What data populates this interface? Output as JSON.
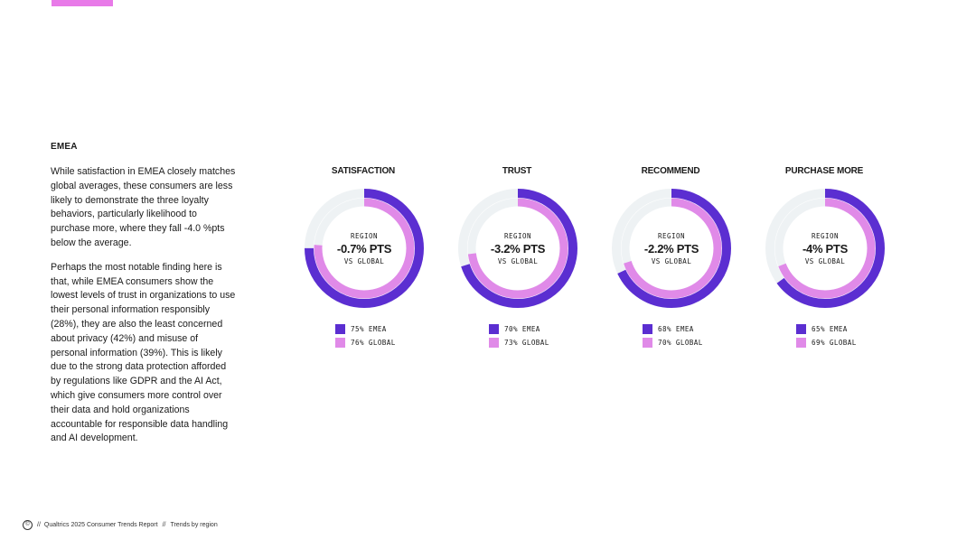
{
  "colors": {
    "emea": "#5b2ed1",
    "global": "#e08ae8",
    "track": "#eef2f4",
    "accent_bar": "#e87ae8"
  },
  "section": {
    "heading": "EMEA",
    "paragraphs": [
      "While satisfaction in EMEA closely matches global averages, these consumers are less likely to demonstrate the three loyalty behaviors, particularly likelihood to purchase more, where they fall -4.0 %pts below the average.",
      "Perhaps the most notable finding here is that, while EMEA consumers show the lowest levels of trust in organizations to use their personal information responsibly (28%), they are also the least concerned about privacy (42%) and misuse of personal information (39%). This is likely due to the strong data protection afforded by regulations like GDPR and the AI Act, which give consumers more control over their data and hold organizations accountable for responsible data handling and AI development."
    ]
  },
  "chart_data": [
    {
      "type": "pie",
      "title": "SATISFACTION",
      "center_top": "REGION",
      "center_value": "-0.7% PTS",
      "center_bottom": "VS GLOBAL",
      "series": [
        {
          "name": "EMEA",
          "value": 75,
          "label": "75% EMEA"
        },
        {
          "name": "GLOBAL",
          "value": 76,
          "label": "76% GLOBAL"
        }
      ]
    },
    {
      "type": "pie",
      "title": "TRUST",
      "center_top": "REGION",
      "center_value": "-3.2% PTS",
      "center_bottom": "VS GLOBAL",
      "series": [
        {
          "name": "EMEA",
          "value": 70,
          "label": "70% EMEA"
        },
        {
          "name": "GLOBAL",
          "value": 73,
          "label": "73% GLOBAL"
        }
      ]
    },
    {
      "type": "pie",
      "title": "RECOMMEND",
      "center_top": "REGION",
      "center_value": "-2.2% PTS",
      "center_bottom": "VS GLOBAL",
      "series": [
        {
          "name": "EMEA",
          "value": 68,
          "label": "68% EMEA"
        },
        {
          "name": "GLOBAL",
          "value": 70,
          "label": "70% GLOBAL"
        }
      ]
    },
    {
      "type": "pie",
      "title": "PURCHASE MORE",
      "center_top": "REGION",
      "center_value": "-4% PTS",
      "center_bottom": "VS GLOBAL",
      "series": [
        {
          "name": "EMEA",
          "value": 65,
          "label": "65% EMEA"
        },
        {
          "name": "GLOBAL",
          "value": 69,
          "label": "69% GLOBAL"
        }
      ]
    }
  ],
  "footer": {
    "copyright": "©",
    "report": "Qualtrics 2025 Consumer Trends Report",
    "separator": "//",
    "section": "Trends by region"
  }
}
